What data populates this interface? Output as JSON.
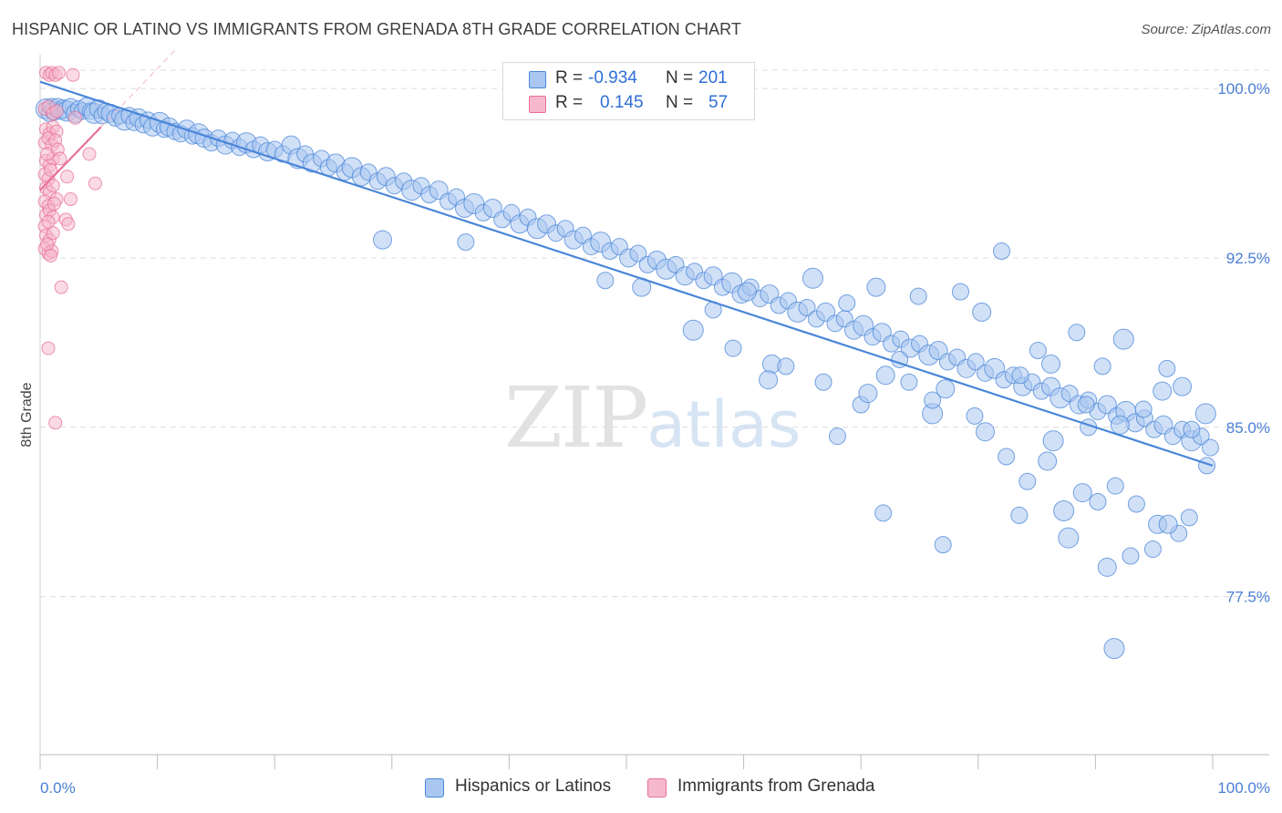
{
  "title": "HISPANIC OR LATINO VS IMMIGRANTS FROM GRENADA 8TH GRADE CORRELATION CHART",
  "source": "Source: ZipAtlas.com",
  "watermark": {
    "zip": "ZIP",
    "atlas": "atlas"
  },
  "legend_top": {
    "r_label": "R =",
    "n_label": "N =",
    "rows": [
      {
        "r": "-0.934",
        "n": "201"
      },
      {
        "r": "0.145",
        "n": "57"
      }
    ]
  },
  "chart_data": {
    "type": "scatter",
    "title": "HISPANIC OR LATINO VS IMMIGRANTS FROM GRENADA 8TH GRADE CORRELATION CHART",
    "xlabel": "",
    "ylabel": "8th Grade",
    "xlim": [
      0,
      100
    ],
    "ylim": [
      70.5,
      101.5
    ],
    "x_ticks": [
      "0.0%",
      "100.0%"
    ],
    "y_ticks": [
      {
        "value": 100.0,
        "label": "100.0%"
      },
      {
        "value": 92.5,
        "label": "92.5%"
      },
      {
        "value": 85.0,
        "label": "85.0%"
      },
      {
        "value": 77.5,
        "label": "77.5%"
      }
    ],
    "grid": true,
    "legend_position": "bottom",
    "colors": {
      "blue": "#4a86d8",
      "blue_fill": "#a9c7f0",
      "pink": "#e8709a",
      "pink_fill": "#f5b8cc"
    },
    "series": [
      {
        "name": "Hispanics or Latinos",
        "color": "#4a86d8",
        "r": -0.934,
        "n": 201,
        "trend": {
          "x": [
            0,
            100
          ],
          "y": [
            100.3,
            83.3
          ]
        },
        "points": [
          [
            0.5,
            99.1
          ],
          [
            0.8,
            98.9
          ],
          [
            1.0,
            99.2
          ],
          [
            1.2,
            99.0
          ],
          [
            1.5,
            99.2
          ],
          [
            1.8,
            99.0
          ],
          [
            2.0,
            99.1
          ],
          [
            2.3,
            99.0
          ],
          [
            2.6,
            99.2
          ],
          [
            3.0,
            98.9
          ],
          [
            3.3,
            99.1
          ],
          [
            3.6,
            99.0
          ],
          [
            4.0,
            99.2
          ],
          [
            4.3,
            99.0
          ],
          [
            4.6,
            98.9
          ],
          [
            5.0,
            99.1
          ],
          [
            5.3,
            98.8
          ],
          [
            5.6,
            99.0
          ],
          [
            6.0,
            98.9
          ],
          [
            6.4,
            98.7
          ],
          [
            6.8,
            98.8
          ],
          [
            7.2,
            98.6
          ],
          [
            7.6,
            98.8
          ],
          [
            8.0,
            98.5
          ],
          [
            8.4,
            98.7
          ],
          [
            8.8,
            98.4
          ],
          [
            9.2,
            98.6
          ],
          [
            9.6,
            98.3
          ],
          [
            10.2,
            98.5
          ],
          [
            10.6,
            98.2
          ],
          [
            11.0,
            98.3
          ],
          [
            11.5,
            98.1
          ],
          [
            12.0,
            98.0
          ],
          [
            12.5,
            98.2
          ],
          [
            13.0,
            97.9
          ],
          [
            13.5,
            98.0
          ],
          [
            14.0,
            97.8
          ],
          [
            14.6,
            97.6
          ],
          [
            15.2,
            97.8
          ],
          [
            15.8,
            97.5
          ],
          [
            16.4,
            97.7
          ],
          [
            17.0,
            97.4
          ],
          [
            17.6,
            97.6
          ],
          [
            18.2,
            97.3
          ],
          [
            18.8,
            97.5
          ],
          [
            19.4,
            97.2
          ],
          [
            20.0,
            97.3
          ],
          [
            20.7,
            97.1
          ],
          [
            21.4,
            97.5
          ],
          [
            22.0,
            96.9
          ],
          [
            22.6,
            97.1
          ],
          [
            23.2,
            96.7
          ],
          [
            24.0,
            96.9
          ],
          [
            24.6,
            96.5
          ],
          [
            25.2,
            96.7
          ],
          [
            26.0,
            96.3
          ],
          [
            26.6,
            96.5
          ],
          [
            27.4,
            96.1
          ],
          [
            28.0,
            96.3
          ],
          [
            28.8,
            95.9
          ],
          [
            29.5,
            96.1
          ],
          [
            30.2,
            95.7
          ],
          [
            31.0,
            95.9
          ],
          [
            31.7,
            95.5
          ],
          [
            32.5,
            95.7
          ],
          [
            33.2,
            95.3
          ],
          [
            34.0,
            95.5
          ],
          [
            34.8,
            95.0
          ],
          [
            35.5,
            95.2
          ],
          [
            36.2,
            94.7
          ],
          [
            37.0,
            94.9
          ],
          [
            37.8,
            94.5
          ],
          [
            38.6,
            94.7
          ],
          [
            39.4,
            94.2
          ],
          [
            40.2,
            94.5
          ],
          [
            40.9,
            94.0
          ],
          [
            41.6,
            94.3
          ],
          [
            42.4,
            93.8
          ],
          [
            43.2,
            94.0
          ],
          [
            44.0,
            93.6
          ],
          [
            44.8,
            93.8
          ],
          [
            45.5,
            93.3
          ],
          [
            46.3,
            93.5
          ],
          [
            47.0,
            93.0
          ],
          [
            47.8,
            93.2
          ],
          [
            48.6,
            92.8
          ],
          [
            49.4,
            93.0
          ],
          [
            50.2,
            92.5
          ],
          [
            51.0,
            92.7
          ],
          [
            51.8,
            92.2
          ],
          [
            52.6,
            92.4
          ],
          [
            53.4,
            92.0
          ],
          [
            54.2,
            92.2
          ],
          [
            55.0,
            91.7
          ],
          [
            55.8,
            91.9
          ],
          [
            56.6,
            91.5
          ],
          [
            57.4,
            91.7
          ],
          [
            58.2,
            91.2
          ],
          [
            59.0,
            91.4
          ],
          [
            59.8,
            90.9
          ],
          [
            60.6,
            91.2
          ],
          [
            61.4,
            90.7
          ],
          [
            62.2,
            90.9
          ],
          [
            63.0,
            90.4
          ],
          [
            63.8,
            90.6
          ],
          [
            64.6,
            90.1
          ],
          [
            65.4,
            90.3
          ],
          [
            66.2,
            89.8
          ],
          [
            67.0,
            90.1
          ],
          [
            67.8,
            89.6
          ],
          [
            68.6,
            89.8
          ],
          [
            69.4,
            89.3
          ],
          [
            70.2,
            89.5
          ],
          [
            71.0,
            89.0
          ],
          [
            71.8,
            89.2
          ],
          [
            72.6,
            88.7
          ],
          [
            73.4,
            88.9
          ],
          [
            74.2,
            88.5
          ],
          [
            75.0,
            88.7
          ],
          [
            75.8,
            88.2
          ],
          [
            76.6,
            88.4
          ],
          [
            77.4,
            87.9
          ],
          [
            78.2,
            88.1
          ],
          [
            79.0,
            87.6
          ],
          [
            79.8,
            87.9
          ],
          [
            80.6,
            87.4
          ],
          [
            81.4,
            87.6
          ],
          [
            82.2,
            87.1
          ],
          [
            83.0,
            87.3
          ],
          [
            83.8,
            86.8
          ],
          [
            84.6,
            87.0
          ],
          [
            85.4,
            86.6
          ],
          [
            86.2,
            86.8
          ],
          [
            87.0,
            86.3
          ],
          [
            87.8,
            86.5
          ],
          [
            88.6,
            86.0
          ],
          [
            89.4,
            86.2
          ],
          [
            90.2,
            85.7
          ],
          [
            91.0,
            86.0
          ],
          [
            91.8,
            85.5
          ],
          [
            92.6,
            85.7
          ],
          [
            93.4,
            85.2
          ],
          [
            94.2,
            85.4
          ],
          [
            95.0,
            84.9
          ],
          [
            95.8,
            85.1
          ],
          [
            96.6,
            84.6
          ],
          [
            97.4,
            84.9
          ],
          [
            98.2,
            84.4
          ],
          [
            99.0,
            84.6
          ],
          [
            99.8,
            84.1
          ],
          [
            29.2,
            93.3
          ],
          [
            36.3,
            93.2
          ],
          [
            48.2,
            91.5
          ],
          [
            51.3,
            91.2
          ],
          [
            55.7,
            89.3
          ],
          [
            59.1,
            88.5
          ],
          [
            62.4,
            87.8
          ],
          [
            66.8,
            87.0
          ],
          [
            70.0,
            86.0
          ],
          [
            72.1,
            87.3
          ],
          [
            74.1,
            87.0
          ],
          [
            76.1,
            85.6
          ],
          [
            77.2,
            86.7
          ],
          [
            82.0,
            92.8
          ],
          [
            85.1,
            88.4
          ],
          [
            86.2,
            87.8
          ],
          [
            88.4,
            89.2
          ],
          [
            90.6,
            87.7
          ],
          [
            92.4,
            88.9
          ],
          [
            94.1,
            85.8
          ],
          [
            96.1,
            87.6
          ],
          [
            97.4,
            86.8
          ],
          [
            98.2,
            84.9
          ],
          [
            99.5,
            83.3
          ],
          [
            60.3,
            91.0
          ],
          [
            65.9,
            91.6
          ],
          [
            68.8,
            90.5
          ],
          [
            71.3,
            91.2
          ],
          [
            74.9,
            90.8
          ],
          [
            78.5,
            91.0
          ],
          [
            80.3,
            90.1
          ],
          [
            84.2,
            82.6
          ],
          [
            86.4,
            84.4
          ],
          [
            88.9,
            82.1
          ],
          [
            91.7,
            82.4
          ],
          [
            93.5,
            81.6
          ],
          [
            95.3,
            80.7
          ],
          [
            97.1,
            80.3
          ],
          [
            90.2,
            81.7
          ],
          [
            87.7,
            80.1
          ],
          [
            77.0,
            79.8
          ],
          [
            76.1,
            86.2
          ],
          [
            80.6,
            84.8
          ],
          [
            82.4,
            83.7
          ],
          [
            83.5,
            81.1
          ],
          [
            85.9,
            83.5
          ],
          [
            87.3,
            81.3
          ],
          [
            89.4,
            85.0
          ],
          [
            91.0,
            78.8
          ],
          [
            93.0,
            79.3
          ],
          [
            94.9,
            79.6
          ],
          [
            96.2,
            80.7
          ],
          [
            98.0,
            81.0
          ],
          [
            99.4,
            85.6
          ],
          [
            92.1,
            85.1
          ],
          [
            83.6,
            87.3
          ],
          [
            89.2,
            86.0
          ],
          [
            95.7,
            86.6
          ],
          [
            79.7,
            85.5
          ],
          [
            71.9,
            81.2
          ],
          [
            91.6,
            75.2
          ],
          [
            63.6,
            87.7
          ],
          [
            57.4,
            90.2
          ],
          [
            70.6,
            86.5
          ],
          [
            73.3,
            88.0
          ],
          [
            68.0,
            84.6
          ],
          [
            62.1,
            87.1
          ]
        ]
      },
      {
        "name": "Immigrants from Grenada",
        "color": "#e8709a",
        "r": 0.145,
        "n": 57,
        "trend": {
          "x": [
            0,
            5.2
          ],
          "y": [
            95.5,
            98.3
          ]
        },
        "points": [
          [
            0.5,
            100.7
          ],
          [
            0.8,
            100.6
          ],
          [
            1.0,
            100.7
          ],
          [
            1.3,
            100.6
          ],
          [
            1.6,
            100.7
          ],
          [
            2.8,
            100.6
          ],
          [
            0.4,
            99.1
          ],
          [
            0.7,
            99.2
          ],
          [
            1.1,
            98.9
          ],
          [
            1.4,
            99.0
          ],
          [
            3.0,
            98.7
          ],
          [
            0.5,
            98.2
          ],
          [
            0.8,
            98.0
          ],
          [
            1.1,
            98.3
          ],
          [
            1.4,
            98.1
          ],
          [
            0.4,
            97.6
          ],
          [
            0.7,
            97.8
          ],
          [
            1.0,
            97.5
          ],
          [
            1.3,
            97.7
          ],
          [
            4.2,
            97.1
          ],
          [
            0.5,
            96.8
          ],
          [
            0.8,
            96.6
          ],
          [
            1.1,
            96.9
          ],
          [
            0.4,
            96.2
          ],
          [
            0.7,
            96.0
          ],
          [
            2.3,
            96.1
          ],
          [
            4.7,
            95.8
          ],
          [
            0.5,
            95.6
          ],
          [
            0.8,
            95.4
          ],
          [
            1.1,
            95.7
          ],
          [
            0.4,
            95.0
          ],
          [
            0.7,
            94.8
          ],
          [
            1.4,
            95.1
          ],
          [
            2.6,
            95.1
          ],
          [
            0.5,
            94.4
          ],
          [
            0.8,
            94.6
          ],
          [
            1.1,
            94.3
          ],
          [
            0.4,
            93.9
          ],
          [
            0.7,
            94.1
          ],
          [
            2.2,
            94.2
          ],
          [
            2.4,
            94.0
          ],
          [
            0.5,
            93.5
          ],
          [
            0.8,
            93.3
          ],
          [
            1.1,
            93.6
          ],
          [
            0.4,
            92.9
          ],
          [
            0.7,
            92.7
          ],
          [
            1.0,
            92.8
          ],
          [
            1.8,
            91.2
          ],
          [
            0.7,
            88.5
          ],
          [
            1.3,
            85.2
          ],
          [
            0.6,
            97.1
          ],
          [
            0.9,
            96.4
          ],
          [
            1.2,
            94.9
          ],
          [
            0.6,
            93.1
          ],
          [
            0.9,
            92.6
          ],
          [
            1.5,
            97.3
          ],
          [
            1.7,
            96.9
          ]
        ]
      }
    ]
  },
  "bottom_legend": [
    {
      "label": "Hispanics or Latinos"
    },
    {
      "label": "Immigrants from Grenada"
    }
  ]
}
